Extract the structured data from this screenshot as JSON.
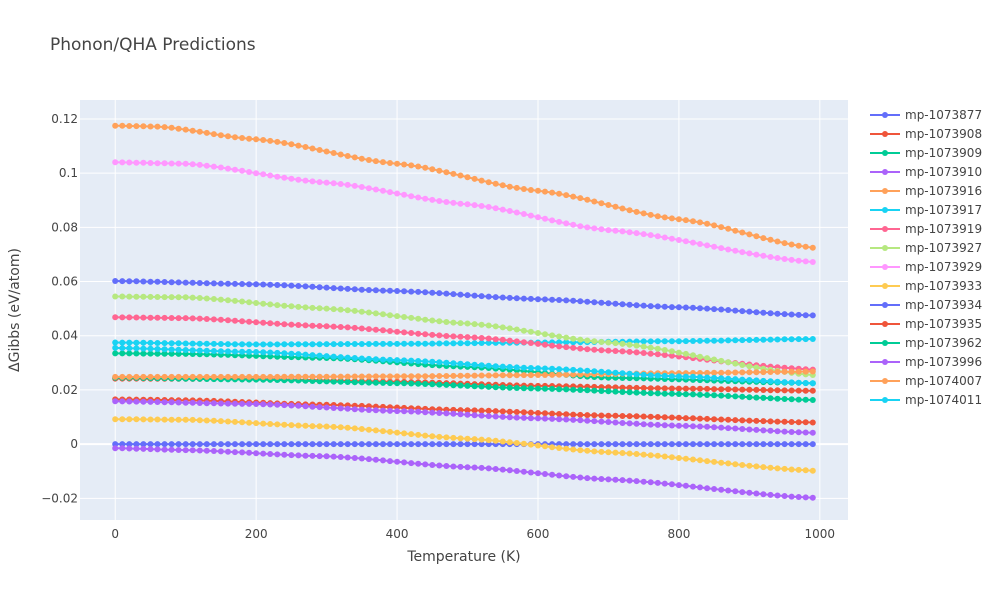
{
  "chart_data": {
    "type": "line",
    "title": "Phonon/QHA Predictions",
    "xlabel": "Temperature (K)",
    "ylabel": "ΔGibbs (eV/atom)",
    "xlim": [
      -50,
      1040
    ],
    "ylim": [
      -0.028,
      0.127
    ],
    "xticks": [
      0,
      200,
      400,
      600,
      800,
      1000
    ],
    "xtick_labels": [
      "0",
      "200",
      "400",
      "600",
      "800",
      "1000"
    ],
    "yticks": [
      -0.02,
      0,
      0.02,
      0.04,
      0.06,
      0.08,
      0.1,
      0.12
    ],
    "ytick_labels": [
      "−0.02",
      "0",
      "0.02",
      "0.04",
      "0.06",
      "0.08",
      "0.1",
      "0.12"
    ],
    "x_range": [
      0,
      990
    ],
    "x_step": 10,
    "grid": true,
    "legend_position": "right",
    "background": "#e5ecf6",
    "series": [
      {
        "name": "mp-1073877",
        "color": "#636efa",
        "knots": [
          [
            0,
            0
          ],
          [
            990,
            0
          ]
        ]
      },
      {
        "name": "mp-1073908",
        "color": "#ef553b",
        "knots": [
          [
            0,
            0.0165
          ],
          [
            100,
            0.0162
          ],
          [
            300,
            0.0145
          ],
          [
            500,
            0.0125
          ],
          [
            700,
            0.0105
          ],
          [
            990,
            0.008
          ]
        ]
      },
      {
        "name": "mp-1073909",
        "color": "#00cc96",
        "knots": [
          [
            0,
            0.0335
          ],
          [
            100,
            0.0333
          ],
          [
            300,
            0.0318
          ],
          [
            500,
            0.0285
          ],
          [
            700,
            0.0245
          ],
          [
            990,
            0.0225
          ]
        ]
      },
      {
        "name": "mp-1073910",
        "color": "#ab63fa",
        "knots": [
          [
            0,
            -0.0015
          ],
          [
            100,
            -0.0022
          ],
          [
            300,
            -0.0045
          ],
          [
            500,
            -0.0085
          ],
          [
            700,
            -0.013
          ],
          [
            990,
            -0.0198
          ]
        ]
      },
      {
        "name": "mp-1073916",
        "color": "#ffa15a",
        "knots": [
          [
            0,
            0.1175
          ],
          [
            60,
            0.1172
          ],
          [
            200,
            0.1125
          ],
          [
            400,
            0.1035
          ],
          [
            600,
            0.0935
          ],
          [
            800,
            0.083
          ],
          [
            990,
            0.0725
          ]
        ]
      },
      {
        "name": "mp-1073917",
        "color": "#19d3f3",
        "knots": [
          [
            0,
            0.0375
          ],
          [
            200,
            0.0368
          ],
          [
            400,
            0.037
          ],
          [
            600,
            0.0375
          ],
          [
            800,
            0.038
          ],
          [
            990,
            0.0388
          ]
        ]
      },
      {
        "name": "mp-1073919",
        "color": "#ff6692",
        "knots": [
          [
            0,
            0.0468
          ],
          [
            100,
            0.0465
          ],
          [
            300,
            0.0435
          ],
          [
            500,
            0.0395
          ],
          [
            700,
            0.0345
          ],
          [
            990,
            0.0275
          ]
        ]
      },
      {
        "name": "mp-1073927",
        "color": "#b6e880",
        "knots": [
          [
            0,
            0.0545
          ],
          [
            100,
            0.0542
          ],
          [
            300,
            0.05
          ],
          [
            500,
            0.0445
          ],
          [
            700,
            0.0375
          ],
          [
            990,
            0.0255
          ]
        ]
      },
      {
        "name": "mp-1073929",
        "color": "#ff97ff",
        "knots": [
          [
            0,
            0.104
          ],
          [
            100,
            0.1035
          ],
          [
            300,
            0.0965
          ],
          [
            500,
            0.0885
          ],
          [
            700,
            0.079
          ],
          [
            990,
            0.0672
          ]
        ]
      },
      {
        "name": "mp-1073933",
        "color": "#fecb52",
        "knots": [
          [
            0,
            0.0092
          ],
          [
            100,
            0.009
          ],
          [
            300,
            0.0065
          ],
          [
            500,
            0.002
          ],
          [
            700,
            -0.003
          ],
          [
            990,
            -0.0098
          ]
        ]
      },
      {
        "name": "mp-1073934",
        "color": "#636efa",
        "knots": [
          [
            0,
            0.0602
          ],
          [
            200,
            0.059
          ],
          [
            400,
            0.0565
          ],
          [
            600,
            0.0535
          ],
          [
            800,
            0.0505
          ],
          [
            990,
            0.0475
          ]
        ]
      },
      {
        "name": "mp-1073935",
        "color": "#ef553b",
        "knots": [
          [
            0,
            0.0242
          ],
          [
            200,
            0.024
          ],
          [
            400,
            0.023
          ],
          [
            600,
            0.0215
          ],
          [
            800,
            0.0205
          ],
          [
            990,
            0.0197
          ]
        ]
      },
      {
        "name": "mp-1073962",
        "color": "#00cc96",
        "knots": [
          [
            0,
            0.0245
          ],
          [
            200,
            0.0238
          ],
          [
            400,
            0.0225
          ],
          [
            600,
            0.0205
          ],
          [
            800,
            0.0185
          ],
          [
            990,
            0.0163
          ]
        ]
      },
      {
        "name": "mp-1073996",
        "color": "#ab63fa",
        "knots": [
          [
            0,
            0.0158
          ],
          [
            200,
            0.0148
          ],
          [
            400,
            0.0122
          ],
          [
            600,
            0.0095
          ],
          [
            800,
            0.0068
          ],
          [
            990,
            0.0042
          ]
        ]
      },
      {
        "name": "mp-1074007",
        "color": "#ffa15a",
        "knots": [
          [
            0,
            0.0248
          ],
          [
            200,
            0.0248
          ],
          [
            400,
            0.025
          ],
          [
            600,
            0.0255
          ],
          [
            800,
            0.0262
          ],
          [
            990,
            0.0268
          ]
        ]
      },
      {
        "name": "mp-1074011",
        "color": "#19d3f3",
        "knots": [
          [
            0,
            0.0355
          ],
          [
            200,
            0.034
          ],
          [
            400,
            0.031
          ],
          [
            600,
            0.028
          ],
          [
            800,
            0.025
          ],
          [
            990,
            0.0225
          ]
        ]
      }
    ]
  }
}
